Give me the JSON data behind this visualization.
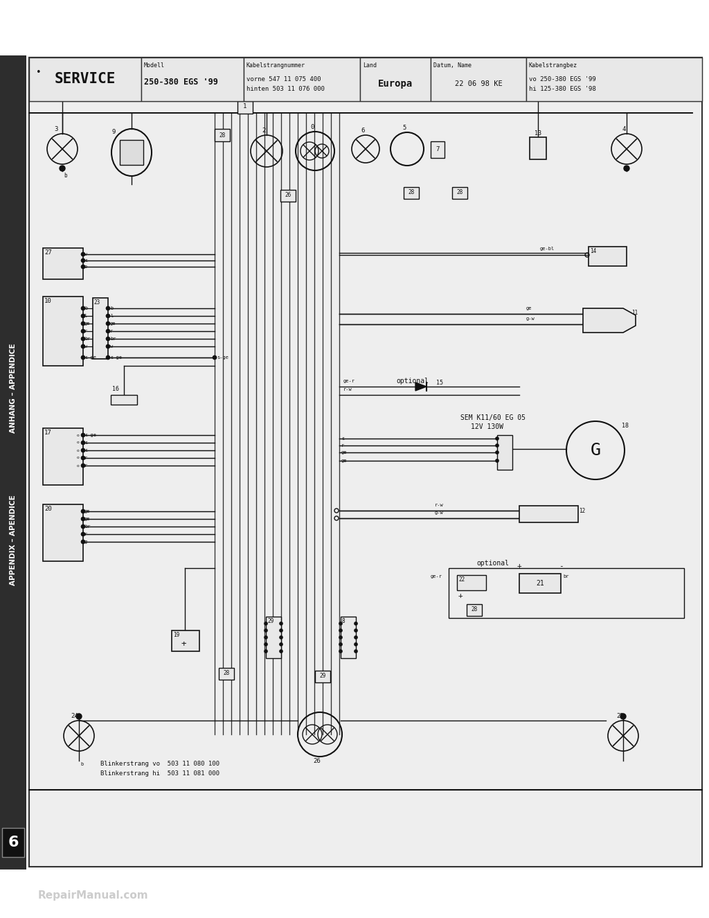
{
  "page_bg": "#f8f8f8",
  "diagram_bg": "#eeeeee",
  "sidebar_bg": "#2d2d2d",
  "sidebar_text_color": "#ffffff",
  "line_color": "#111111",
  "header_service": "SERVICE",
  "header_modell_label": "Modell",
  "header_modell": "250-380 EGS '99",
  "header_kabel_label": "Kabelstrangnummer",
  "header_kabel1": "vorne 547 11 075 400",
  "header_kabel2": "hinten 503 11 076 000",
  "header_land_label": "Land",
  "header_land": "Europa",
  "header_datum_label": "Datum, Name",
  "header_datum": "22 06 98 KE",
  "header_kabelbez_label": "Kabelstrangbez",
  "header_kabelbez1": "vo 250-380 EGS '99",
  "header_kabelbez2": "hi 125-380 EGS '98",
  "sidebar_text1": "ANHANG – APPENDICE",
  "sidebar_text2": "APPENDIX – APENDICE",
  "sidebar_number": "6",
  "footer_text": "RepairManual.com",
  "bottom_text1": "Blinkerstrang vo  503 11 080 100",
  "bottom_text2": "Blinkerstrang hi  503 11 081 000",
  "sem_text1": "SEM K11/60 EG 05",
  "sem_text2": "12V 130W",
  "optional1": "optional",
  "optional2": "optional"
}
